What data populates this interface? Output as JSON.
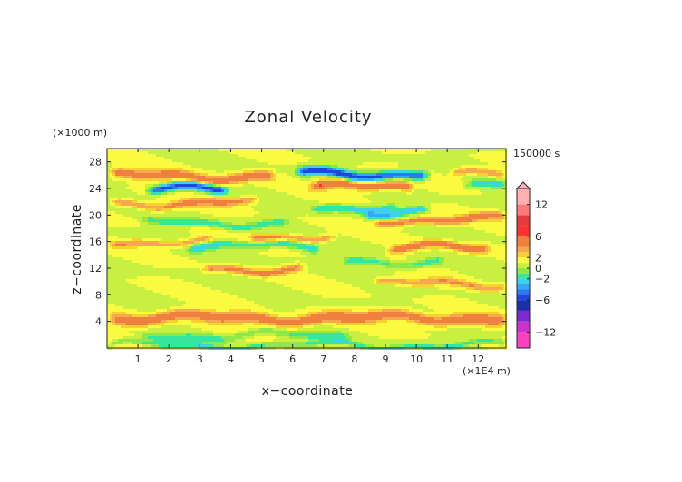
{
  "chart_data": {
    "type": "heatmap",
    "title": "Zonal Velocity",
    "xlabel": "x−coordinate",
    "ylabel": "z−coordinate",
    "x_unit": "(×1E4 m)",
    "y_unit": "(×1000 m)",
    "time_label": "150000 s",
    "xlim": [
      0,
      12.9
    ],
    "ylim": [
      0,
      30
    ],
    "x_ticks": [
      1,
      2,
      3,
      4,
      5,
      6,
      7,
      8,
      9,
      10,
      11,
      12
    ],
    "y_ticks": [
      4,
      8,
      12,
      16,
      20,
      24,
      28
    ],
    "colorbar": {
      "ticks": [
        12,
        6,
        2,
        0,
        -2,
        -6,
        -12
      ],
      "range": [
        -15,
        15
      ],
      "levels": [
        {
          "min": -15,
          "max": -12,
          "color": "#ff40c0"
        },
        {
          "min": -12,
          "max": -10,
          "color": "#cc33cc"
        },
        {
          "min": -10,
          "max": -8,
          "color": "#7a2ad0"
        },
        {
          "min": -8,
          "max": -6,
          "color": "#1a2fa8"
        },
        {
          "min": -6,
          "max": -5,
          "color": "#1e46e0"
        },
        {
          "min": -5,
          "max": -4,
          "color": "#2f7af0"
        },
        {
          "min": -4,
          "max": -3,
          "color": "#36a8f5"
        },
        {
          "min": -3,
          "max": -2,
          "color": "#3fd0f0"
        },
        {
          "min": -2,
          "max": -1,
          "color": "#34e6a0"
        },
        {
          "min": -1,
          "max": 0,
          "color": "#8fe84a"
        },
        {
          "min": 0,
          "max": 1,
          "color": "#c8f040"
        },
        {
          "min": 1,
          "max": 2,
          "color": "#fafa40"
        },
        {
          "min": 2,
          "max": 3,
          "color": "#f8d030"
        },
        {
          "min": 3,
          "max": 4,
          "color": "#f5a850"
        },
        {
          "min": 4,
          "max": 6,
          "color": "#f08040"
        },
        {
          "min": 6,
          "max": 8,
          "color": "#ff3030"
        },
        {
          "min": 8,
          "max": 10,
          "color": "#e63b3b"
        },
        {
          "min": 10,
          "max": 12,
          "color": "#ff7a7a"
        },
        {
          "min": 12,
          "max": 15,
          "color": "#ffb0b0"
        }
      ]
    },
    "bands": [
      {
        "z": 25.8,
        "width": 0.75,
        "amp": 4.5,
        "x_from": 0,
        "x_to": 5.5
      },
      {
        "z": 26.2,
        "width": 0.7,
        "amp": -6.5,
        "x_from": 6.0,
        "x_to": 10.5
      },
      {
        "z": 26.0,
        "width": 0.6,
        "amp": 3.5,
        "x_from": 11.0,
        "x_to": 13
      },
      {
        "z": 23.8,
        "width": 0.65,
        "amp": -6.5,
        "x_from": 1.2,
        "x_to": 4.0
      },
      {
        "z": 24.2,
        "width": 0.7,
        "amp": 5,
        "x_from": 6.5,
        "x_to": 10.0
      },
      {
        "z": 24.5,
        "width": 0.55,
        "amp": -3,
        "x_from": 11.5,
        "x_to": 13
      },
      {
        "z": 21.8,
        "width": 0.6,
        "amp": 3.5,
        "x_from": 0,
        "x_to": 5.0
      },
      {
        "z": 21.2,
        "width": 0.6,
        "amp": -3,
        "x_from": 6.5,
        "x_to": 9.5
      },
      {
        "z": 20.5,
        "width": 0.55,
        "amp": -3.5,
        "x_from": 8.2,
        "x_to": 10.5
      },
      {
        "z": 19.3,
        "width": 0.6,
        "amp": 4,
        "x_from": 8.5,
        "x_to": 13
      },
      {
        "z": 18.8,
        "width": 0.55,
        "amp": -2.5,
        "x_from": 1.0,
        "x_to": 6.0
      },
      {
        "z": 16.9,
        "width": 0.55,
        "amp": 3.5,
        "x_from": 4.5,
        "x_to": 7.5
      },
      {
        "z": 16.0,
        "width": 0.55,
        "amp": 3.0,
        "x_from": 0,
        "x_to": 3.5
      },
      {
        "z": 15.2,
        "width": 0.6,
        "amp": -3.0,
        "x_from": 2.5,
        "x_to": 7.0
      },
      {
        "z": 15.0,
        "width": 0.6,
        "amp": 4.5,
        "x_from": 9.0,
        "x_to": 12.5
      },
      {
        "z": 13.0,
        "width": 0.6,
        "amp": -2.5,
        "x_from": 7.5,
        "x_to": 11.0
      },
      {
        "z": 11.9,
        "width": 0.55,
        "amp": 3.5,
        "x_from": 3.0,
        "x_to": 6.5
      },
      {
        "z": 9.6,
        "width": 0.55,
        "amp": 3.0,
        "x_from": 8.5,
        "x_to": 13
      },
      {
        "z": 4.5,
        "width": 0.85,
        "amp": 4.5,
        "x_from": 0,
        "x_to": 13
      },
      {
        "z": 1.8,
        "width": 0.6,
        "amp": -2.0,
        "x_from": 1.0,
        "x_to": 8.0
      },
      {
        "z": 0.4,
        "width": 0.4,
        "amp": -2.5,
        "x_from": 0,
        "x_to": 13
      }
    ]
  }
}
